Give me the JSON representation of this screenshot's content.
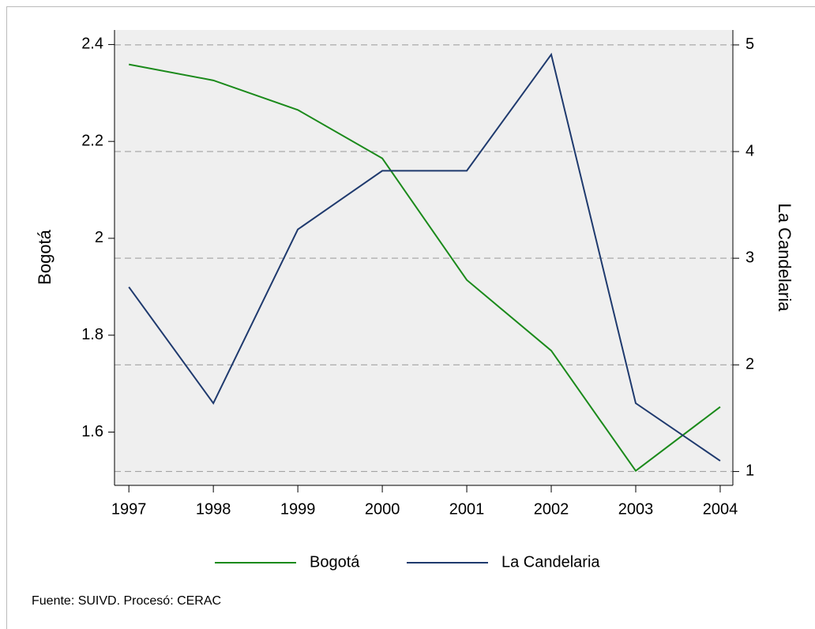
{
  "chart_data": {
    "type": "line",
    "x": [
      1997,
      1998,
      1999,
      2000,
      2001,
      2002,
      2003,
      2004
    ],
    "series": [
      {
        "name": "Bogotá",
        "color": "#1b8a1b",
        "values": [
          2.359,
          2.326,
          2.265,
          2.165,
          1.914,
          1.768,
          1.52,
          1.652
        ]
      },
      {
        "name": "La Candelaria",
        "color": "#1f3a6e",
        "axis": "y2",
        "values": [
          2.73,
          1.64,
          3.27,
          3.82,
          3.82,
          4.91,
          1.64,
          1.1
        ]
      }
    ],
    "ylabel": "Bogotá",
    "y2label": "La Candelaria",
    "xlim": [
      1996.83,
      2004.15
    ],
    "xticks": [
      1997,
      1998,
      1999,
      2000,
      2001,
      2002,
      2003,
      2004
    ],
    "ylim": [
      1.49,
      2.43
    ],
    "yticks": [
      1.6,
      1.8,
      2,
      2.2,
      2.4
    ],
    "y2lim": [
      0.87,
      5.14
    ],
    "y2ticks": [
      1,
      2,
      3,
      4,
      5
    ],
    "grid": true,
    "legend": "bottom",
    "note": "Fuente: SUIVD. Procesó: CERAC"
  }
}
